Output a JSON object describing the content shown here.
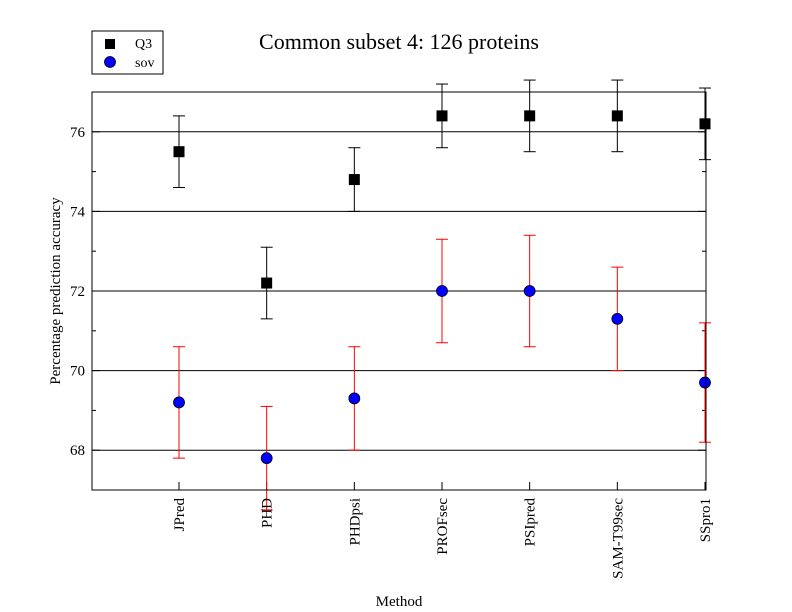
{
  "chart_data": {
    "type": "scatter",
    "title": "Common subset 4: 126 proteins",
    "xlabel": "Method",
    "ylabel": "Percentage prediction accuracy",
    "categories": [
      "JPred",
      "PHD",
      "PHDpsi",
      "PROFsec",
      "PSIpred",
      "SAM-T99sec",
      "SSpro1"
    ],
    "ylim": [
      67,
      77
    ],
    "yticks": [
      68,
      70,
      72,
      74,
      76
    ],
    "grid": "horizontal at major ticks",
    "legend_position": "top-left",
    "series": [
      {
        "name": "Q3",
        "marker": "square",
        "color": "#000000",
        "error_color": "#000000",
        "values": [
          75.5,
          72.2,
          74.8,
          76.4,
          76.4,
          76.4,
          76.2
        ],
        "errors": [
          0.9,
          0.9,
          0.8,
          0.8,
          0.9,
          0.9,
          0.9
        ]
      },
      {
        "name": "sov",
        "marker": "circle",
        "color": "#0000ff",
        "error_color": "#ff0000",
        "values": [
          69.2,
          67.8,
          69.3,
          72.0,
          72.0,
          71.3,
          69.7
        ],
        "errors": [
          1.4,
          1.3,
          1.3,
          1.3,
          1.4,
          1.3,
          1.5
        ]
      }
    ]
  }
}
